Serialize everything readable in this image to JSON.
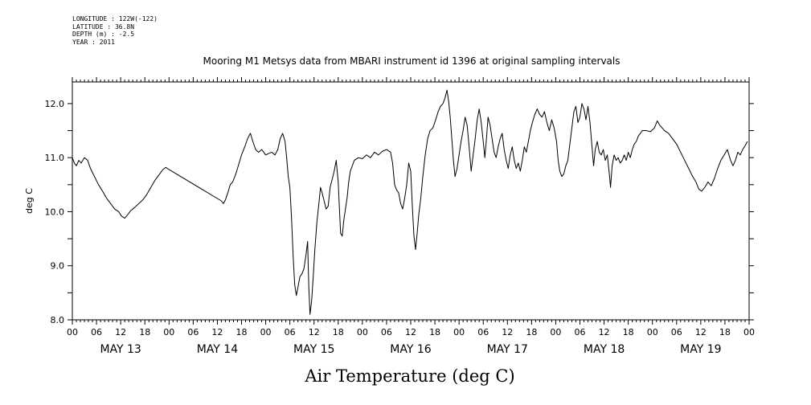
{
  "header": {
    "longitude": "LONGITUDE : 122W(-122)",
    "latitude": "LATITUDE : 36.8N",
    "depth": "DEPTH (m) : -2.5",
    "year": "YEAR : 2011"
  },
  "chart_data": {
    "type": "line",
    "title": "Mooring M1 Metsys data from MBARI instrument id 1396 at original sampling intervals",
    "xlabel": "Air Temperature (deg C)",
    "ylabel": "deg C",
    "x_unit": "hours from MAY 13 00:00",
    "xlim": [
      0,
      168
    ],
    "ylim": [
      8.0,
      12.4
    ],
    "yticks": [
      8.0,
      9.0,
      10.0,
      11.0,
      12.0
    ],
    "ytick_labels": [
      "8.0",
      "9.0",
      "10.0",
      "11.0",
      "12.0"
    ],
    "xtick_labels": [
      "00",
      "06",
      "12",
      "18",
      "00",
      "06",
      "12",
      "18",
      "00",
      "06",
      "12",
      "18",
      "00",
      "06",
      "12",
      "18",
      "00",
      "06",
      "12",
      "18",
      "00",
      "06",
      "12",
      "18",
      "00",
      "06",
      "12",
      "18",
      "00"
    ],
    "day_labels": [
      "MAY 13",
      "MAY 14",
      "MAY 15",
      "MAY 16",
      "MAY 17",
      "MAY 18",
      "MAY 19"
    ],
    "grid": false,
    "series": [
      {
        "color": "#000000",
        "points": [
          [
            0,
            11.0
          ],
          [
            0.5,
            10.9
          ],
          [
            1,
            10.85
          ],
          [
            1.6,
            10.95
          ],
          [
            2.2,
            10.9
          ],
          [
            3,
            11.0
          ],
          [
            3.8,
            10.95
          ],
          [
            4.5,
            10.8
          ],
          [
            5.5,
            10.65
          ],
          [
            6.5,
            10.5
          ],
          [
            7.5,
            10.38
          ],
          [
            8.5,
            10.25
          ],
          [
            9.5,
            10.15
          ],
          [
            10.5,
            10.05
          ],
          [
            11.5,
            10.0
          ],
          [
            12.2,
            9.92
          ],
          [
            13,
            9.88
          ],
          [
            13.8,
            9.95
          ],
          [
            14.5,
            10.02
          ],
          [
            15.5,
            10.08
          ],
          [
            16.5,
            10.15
          ],
          [
            17.5,
            10.22
          ],
          [
            18.5,
            10.32
          ],
          [
            19.5,
            10.45
          ],
          [
            20.5,
            10.58
          ],
          [
            21.5,
            10.68
          ],
          [
            22.5,
            10.78
          ],
          [
            23.2,
            10.82
          ],
          [
            24,
            10.78
          ],
          [
            37,
            10.2
          ],
          [
            37.5,
            10.15
          ],
          [
            38,
            10.22
          ],
          [
            38.6,
            10.35
          ],
          [
            39.2,
            10.5
          ],
          [
            39.8,
            10.55
          ],
          [
            40.5,
            10.68
          ],
          [
            41.2,
            10.85
          ],
          [
            42,
            11.05
          ],
          [
            42.8,
            11.2
          ],
          [
            43.5,
            11.35
          ],
          [
            44.2,
            11.45
          ],
          [
            44.8,
            11.3
          ],
          [
            45.5,
            11.15
          ],
          [
            46.2,
            11.1
          ],
          [
            47,
            11.15
          ],
          [
            48,
            11.05
          ],
          [
            48.8,
            11.08
          ],
          [
            49.5,
            11.1
          ],
          [
            50.3,
            11.05
          ],
          [
            51,
            11.15
          ],
          [
            51.6,
            11.35
          ],
          [
            52.2,
            11.45
          ],
          [
            52.8,
            11.3
          ],
          [
            53.2,
            11.0
          ],
          [
            53.6,
            10.65
          ],
          [
            54,
            10.45
          ],
          [
            54.4,
            9.9
          ],
          [
            54.8,
            9.2
          ],
          [
            55.2,
            8.65
          ],
          [
            55.6,
            8.45
          ],
          [
            56,
            8.6
          ],
          [
            56.5,
            8.8
          ],
          [
            57,
            8.85
          ],
          [
            57.5,
            8.95
          ],
          [
            58,
            9.2
          ],
          [
            58.4,
            9.45
          ],
          [
            58.7,
            8.6
          ],
          [
            59,
            8.1
          ],
          [
            59.4,
            8.35
          ],
          [
            59.8,
            8.8
          ],
          [
            60.2,
            9.3
          ],
          [
            60.7,
            9.8
          ],
          [
            61.2,
            10.15
          ],
          [
            61.6,
            10.45
          ],
          [
            62,
            10.35
          ],
          [
            62.5,
            10.2
          ],
          [
            63,
            10.05
          ],
          [
            63.5,
            10.1
          ],
          [
            64,
            10.45
          ],
          [
            64.5,
            10.6
          ],
          [
            65,
            10.75
          ],
          [
            65.5,
            10.95
          ],
          [
            66,
            10.55
          ],
          [
            66.3,
            10.05
          ],
          [
            66.6,
            9.6
          ],
          [
            67,
            9.55
          ],
          [
            67.4,
            9.85
          ],
          [
            67.8,
            10.05
          ],
          [
            68.2,
            10.25
          ],
          [
            68.6,
            10.55
          ],
          [
            69,
            10.75
          ],
          [
            69.5,
            10.85
          ],
          [
            70,
            10.95
          ],
          [
            71,
            11.0
          ],
          [
            72,
            10.98
          ],
          [
            73,
            11.05
          ],
          [
            74,
            11.0
          ],
          [
            75,
            11.1
          ],
          [
            76,
            11.05
          ],
          [
            77,
            11.12
          ],
          [
            78,
            11.15
          ],
          [
            79,
            11.1
          ],
          [
            79.5,
            10.9
          ],
          [
            80,
            10.5
          ],
          [
            80.5,
            10.4
          ],
          [
            81,
            10.35
          ],
          [
            81.5,
            10.15
          ],
          [
            82,
            10.05
          ],
          [
            82.5,
            10.25
          ],
          [
            83,
            10.5
          ],
          [
            83.5,
            10.9
          ],
          [
            84,
            10.75
          ],
          [
            84.4,
            10.1
          ],
          [
            84.8,
            9.55
          ],
          [
            85.2,
            9.3
          ],
          [
            85.6,
            9.6
          ],
          [
            86,
            9.95
          ],
          [
            86.5,
            10.25
          ],
          [
            87,
            10.65
          ],
          [
            87.6,
            11.05
          ],
          [
            88.2,
            11.35
          ],
          [
            88.8,
            11.5
          ],
          [
            89.5,
            11.55
          ],
          [
            90.2,
            11.7
          ],
          [
            90.8,
            11.85
          ],
          [
            91.4,
            11.95
          ],
          [
            92,
            12.0
          ],
          [
            92.5,
            12.1
          ],
          [
            93,
            12.25
          ],
          [
            93.4,
            12.05
          ],
          [
            93.8,
            11.75
          ],
          [
            94.2,
            11.35
          ],
          [
            94.6,
            10.95
          ],
          [
            95,
            10.65
          ],
          [
            95.5,
            10.8
          ],
          [
            96,
            11.05
          ],
          [
            96.5,
            11.3
          ],
          [
            97,
            11.5
          ],
          [
            97.5,
            11.75
          ],
          [
            98,
            11.6
          ],
          [
            98.5,
            11.2
          ],
          [
            99,
            10.75
          ],
          [
            99.5,
            11.05
          ],
          [
            100,
            11.35
          ],
          [
            100.5,
            11.7
          ],
          [
            101,
            11.9
          ],
          [
            101.5,
            11.65
          ],
          [
            102,
            11.3
          ],
          [
            102.4,
            11.0
          ],
          [
            102.8,
            11.35
          ],
          [
            103.2,
            11.75
          ],
          [
            103.7,
            11.6
          ],
          [
            104.2,
            11.35
          ],
          [
            104.7,
            11.1
          ],
          [
            105.2,
            11.0
          ],
          [
            105.7,
            11.2
          ],
          [
            106.2,
            11.35
          ],
          [
            106.7,
            11.45
          ],
          [
            107.2,
            11.15
          ],
          [
            107.7,
            10.95
          ],
          [
            108.2,
            10.8
          ],
          [
            108.7,
            11.05
          ],
          [
            109.2,
            11.2
          ],
          [
            109.7,
            10.95
          ],
          [
            110.2,
            10.8
          ],
          [
            110.7,
            10.9
          ],
          [
            111.2,
            10.75
          ],
          [
            111.7,
            10.95
          ],
          [
            112.2,
            11.2
          ],
          [
            112.7,
            11.1
          ],
          [
            113.2,
            11.3
          ],
          [
            113.7,
            11.5
          ],
          [
            114.2,
            11.65
          ],
          [
            114.8,
            11.8
          ],
          [
            115.4,
            11.9
          ],
          [
            116,
            11.8
          ],
          [
            116.6,
            11.75
          ],
          [
            117.2,
            11.85
          ],
          [
            117.8,
            11.65
          ],
          [
            118.4,
            11.5
          ],
          [
            119,
            11.7
          ],
          [
            119.6,
            11.55
          ],
          [
            120.2,
            11.3
          ],
          [
            120.6,
            10.95
          ],
          [
            121,
            10.75
          ],
          [
            121.5,
            10.65
          ],
          [
            122,
            10.7
          ],
          [
            122.5,
            10.85
          ],
          [
            123,
            10.95
          ],
          [
            123.5,
            11.25
          ],
          [
            124,
            11.55
          ],
          [
            124.5,
            11.85
          ],
          [
            125,
            11.95
          ],
          [
            125.5,
            11.65
          ],
          [
            126,
            11.75
          ],
          [
            126.5,
            12.0
          ],
          [
            127,
            11.9
          ],
          [
            127.5,
            11.7
          ],
          [
            128,
            11.95
          ],
          [
            128.5,
            11.65
          ],
          [
            129,
            11.2
          ],
          [
            129.4,
            10.85
          ],
          [
            129.8,
            11.15
          ],
          [
            130.3,
            11.3
          ],
          [
            130.8,
            11.1
          ],
          [
            131.3,
            11.05
          ],
          [
            131.8,
            11.15
          ],
          [
            132.3,
            10.95
          ],
          [
            132.8,
            11.05
          ],
          [
            133.3,
            10.7
          ],
          [
            133.6,
            10.45
          ],
          [
            134,
            10.85
          ],
          [
            134.5,
            11.05
          ],
          [
            135,
            10.95
          ],
          [
            135.5,
            11.0
          ],
          [
            136,
            10.9
          ],
          [
            136.5,
            10.95
          ],
          [
            137,
            11.05
          ],
          [
            137.5,
            10.95
          ],
          [
            138,
            11.1
          ],
          [
            138.5,
            11.0
          ],
          [
            139,
            11.15
          ],
          [
            139.5,
            11.25
          ],
          [
            140,
            11.3
          ],
          [
            140.5,
            11.4
          ],
          [
            141,
            11.45
          ],
          [
            141.5,
            11.5
          ],
          [
            142.5,
            11.5
          ],
          [
            143.5,
            11.48
          ],
          [
            144.5,
            11.55
          ],
          [
            145.2,
            11.68
          ],
          [
            145.8,
            11.6
          ],
          [
            146.4,
            11.55
          ],
          [
            147,
            11.5
          ],
          [
            148,
            11.45
          ],
          [
            149,
            11.35
          ],
          [
            150,
            11.25
          ],
          [
            151,
            11.1
          ],
          [
            152,
            10.95
          ],
          [
            153,
            10.8
          ],
          [
            154,
            10.65
          ],
          [
            154.8,
            10.55
          ],
          [
            155.5,
            10.42
          ],
          [
            156.2,
            10.38
          ],
          [
            157,
            10.45
          ],
          [
            157.8,
            10.55
          ],
          [
            158.6,
            10.48
          ],
          [
            159.4,
            10.62
          ],
          [
            160.2,
            10.8
          ],
          [
            161,
            10.95
          ],
          [
            161.8,
            11.05
          ],
          [
            162.6,
            11.15
          ],
          [
            163.4,
            10.95
          ],
          [
            164,
            10.85
          ],
          [
            164.6,
            10.95
          ],
          [
            165.2,
            11.1
          ],
          [
            165.8,
            11.05
          ],
          [
            166.4,
            11.15
          ],
          [
            167,
            11.22
          ],
          [
            167.6,
            11.3
          ]
        ]
      }
    ]
  }
}
